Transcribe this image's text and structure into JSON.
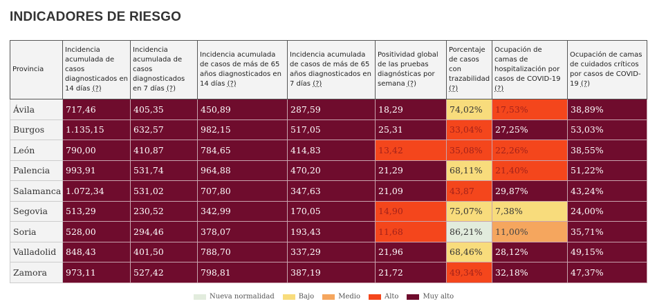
{
  "title": "INDICADORES DE RIESGO",
  "colors": {
    "nueva": "#e2ecdd",
    "bajo": "#f8dc7c",
    "medio": "#f5a65e",
    "alto": "#f4461c",
    "muy_alto": "#6f0c2d"
  },
  "text_colors": {
    "nueva": "#333",
    "bajo": "#333",
    "medio": "#444",
    "alto": "#a3221a",
    "muy_alto": "#ffffff"
  },
  "chart_data": {
    "type": "table",
    "columns": [
      "Provincia",
      "Incidencia acumulada de casos diagnosticados en 14 días",
      "Incidencia acumulada de casos diagnosticados en 7 días",
      "Incidencia acumulada de casos de más de 65 años diagnosticados en 14 días",
      "Incidencia acumulada de casos de más de 65 años diagnosticados en 7 días",
      "Positividad global de las pruebas diagnósticas por semana",
      "Porcentaje de casos con trazabilidad",
      "Ocupación de camas de hospitalización por casos de COVID-19",
      "Ocupación de camas de cuidados críticos por casos de COVID-19"
    ],
    "help_marker": "(?)",
    "rows": [
      {
        "provincia": "Ávila",
        "cells": [
          [
            "717,46",
            "muy_alto"
          ],
          [
            "405,35",
            "muy_alto"
          ],
          [
            "450,89",
            "muy_alto"
          ],
          [
            "287,59",
            "muy_alto"
          ],
          [
            "18,29",
            "muy_alto"
          ],
          [
            "74,02%",
            "bajo"
          ],
          [
            "17,53%",
            "alto"
          ],
          [
            "38,89%",
            "muy_alto"
          ]
        ]
      },
      {
        "provincia": "Burgos",
        "cells": [
          [
            "1.135,15",
            "muy_alto"
          ],
          [
            "632,57",
            "muy_alto"
          ],
          [
            "982,15",
            "muy_alto"
          ],
          [
            "517,05",
            "muy_alto"
          ],
          [
            "25,31",
            "muy_alto"
          ],
          [
            "33,04%",
            "alto"
          ],
          [
            "27,25%",
            "muy_alto"
          ],
          [
            "53,03%",
            "muy_alto"
          ]
        ]
      },
      {
        "provincia": "León",
        "cells": [
          [
            "790,00",
            "muy_alto"
          ],
          [
            "410,87",
            "muy_alto"
          ],
          [
            "784,65",
            "muy_alto"
          ],
          [
            "414,83",
            "muy_alto"
          ],
          [
            "13,42",
            "alto"
          ],
          [
            "35,08%",
            "alto"
          ],
          [
            "22,26%",
            "alto"
          ],
          [
            "38,55%",
            "muy_alto"
          ]
        ]
      },
      {
        "provincia": "Palencia",
        "cells": [
          [
            "993,91",
            "muy_alto"
          ],
          [
            "531,74",
            "muy_alto"
          ],
          [
            "964,88",
            "muy_alto"
          ],
          [
            "470,20",
            "muy_alto"
          ],
          [
            "21,29",
            "muy_alto"
          ],
          [
            "68,11%",
            "bajo"
          ],
          [
            "21,40%",
            "alto"
          ],
          [
            "51,22%",
            "muy_alto"
          ]
        ]
      },
      {
        "provincia": "Salamanca",
        "cells": [
          [
            "1.072,34",
            "muy_alto"
          ],
          [
            "531,02",
            "muy_alto"
          ],
          [
            "707,80",
            "muy_alto"
          ],
          [
            "347,63",
            "muy_alto"
          ],
          [
            "21,09",
            "muy_alto"
          ],
          [
            "43,87",
            "alto"
          ],
          [
            "29,87%",
            "muy_alto"
          ],
          [
            "43,24%",
            "muy_alto"
          ]
        ]
      },
      {
        "provincia": "Segovia",
        "cells": [
          [
            "513,29",
            "muy_alto"
          ],
          [
            "230,52",
            "muy_alto"
          ],
          [
            "342,99",
            "muy_alto"
          ],
          [
            "170,05",
            "muy_alto"
          ],
          [
            "14,90",
            "alto"
          ],
          [
            "75,07%",
            "bajo"
          ],
          [
            "7,38%",
            "bajo"
          ],
          [
            "24,00%",
            "muy_alto"
          ]
        ]
      },
      {
        "provincia": "Soria",
        "cells": [
          [
            "528,00",
            "muy_alto"
          ],
          [
            "294,46",
            "muy_alto"
          ],
          [
            "378,07",
            "muy_alto"
          ],
          [
            "193,43",
            "muy_alto"
          ],
          [
            "11,68",
            "alto"
          ],
          [
            "86,21%",
            "nueva"
          ],
          [
            "11,00%",
            "medio"
          ],
          [
            "35,71%",
            "muy_alto"
          ]
        ]
      },
      {
        "provincia": "Valladolid",
        "cells": [
          [
            "848,43",
            "muy_alto"
          ],
          [
            "401,50",
            "muy_alto"
          ],
          [
            "788,70",
            "muy_alto"
          ],
          [
            "337,29",
            "muy_alto"
          ],
          [
            "21,96",
            "muy_alto"
          ],
          [
            "68,46%",
            "bajo"
          ],
          [
            "28,12%",
            "muy_alto"
          ],
          [
            "49,15%",
            "muy_alto"
          ]
        ]
      },
      {
        "provincia": "Zamora",
        "cells": [
          [
            "973,11",
            "muy_alto"
          ],
          [
            "527,42",
            "muy_alto"
          ],
          [
            "798,81",
            "muy_alto"
          ],
          [
            "387,19",
            "muy_alto"
          ],
          [
            "21,72",
            "muy_alto"
          ],
          [
            "49,34%",
            "alto"
          ],
          [
            "32,18%",
            "muy_alto"
          ],
          [
            "47,37%",
            "muy_alto"
          ]
        ]
      }
    ]
  },
  "legend": [
    {
      "key": "nueva",
      "label": "Nueva normalidad"
    },
    {
      "key": "bajo",
      "label": "Bajo"
    },
    {
      "key": "medio",
      "label": "Medio"
    },
    {
      "key": "alto",
      "label": "Alto"
    },
    {
      "key": "muy_alto",
      "label": "Muy alto"
    }
  ]
}
